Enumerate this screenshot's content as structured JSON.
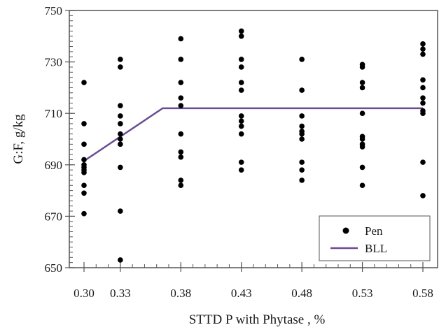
{
  "chart_data": {
    "type": "scatter",
    "title": "",
    "xlabel": "STTD P with Phytase , %",
    "ylabel": "G:F, g/kg",
    "xlim": [
      0.3,
      0.58
    ],
    "ylim": [
      650,
      750
    ],
    "xticks": [
      "0.30",
      "0.33",
      "0.38",
      "0.43",
      "0.48",
      "0.53",
      "0.58"
    ],
    "yticks": [
      "650",
      "670",
      "690",
      "710",
      "730",
      "750"
    ],
    "grid": false,
    "legend_position": "bottom-right",
    "series": [
      {
        "name": "Pen",
        "kind": "points",
        "color": "#000000",
        "points": [
          [
            0.3,
            722
          ],
          [
            0.3,
            706
          ],
          [
            0.3,
            698
          ],
          [
            0.3,
            692
          ],
          [
            0.3,
            690
          ],
          [
            0.3,
            689
          ],
          [
            0.3,
            688
          ],
          [
            0.3,
            687
          ],
          [
            0.3,
            682
          ],
          [
            0.3,
            679
          ],
          [
            0.3,
            671
          ],
          [
            0.33,
            731
          ],
          [
            0.33,
            728
          ],
          [
            0.33,
            713
          ],
          [
            0.33,
            709
          ],
          [
            0.33,
            706
          ],
          [
            0.33,
            702
          ],
          [
            0.33,
            700
          ],
          [
            0.33,
            698
          ],
          [
            0.33,
            689
          ],
          [
            0.33,
            672
          ],
          [
            0.33,
            653
          ],
          [
            0.38,
            739
          ],
          [
            0.38,
            731
          ],
          [
            0.38,
            722
          ],
          [
            0.38,
            716
          ],
          [
            0.38,
            713
          ],
          [
            0.38,
            702
          ],
          [
            0.38,
            695
          ],
          [
            0.38,
            693
          ],
          [
            0.38,
            684
          ],
          [
            0.38,
            682
          ],
          [
            0.43,
            742
          ],
          [
            0.43,
            740
          ],
          [
            0.43,
            731
          ],
          [
            0.43,
            728
          ],
          [
            0.43,
            722
          ],
          [
            0.43,
            719
          ],
          [
            0.43,
            709
          ],
          [
            0.43,
            707
          ],
          [
            0.43,
            705
          ],
          [
            0.43,
            702
          ],
          [
            0.43,
            691
          ],
          [
            0.43,
            688
          ],
          [
            0.48,
            731
          ],
          [
            0.48,
            719
          ],
          [
            0.48,
            709
          ],
          [
            0.48,
            705
          ],
          [
            0.48,
            703
          ],
          [
            0.48,
            702
          ],
          [
            0.48,
            700
          ],
          [
            0.48,
            691
          ],
          [
            0.48,
            688
          ],
          [
            0.48,
            684
          ],
          [
            0.53,
            729
          ],
          [
            0.53,
            728
          ],
          [
            0.53,
            722
          ],
          [
            0.53,
            720
          ],
          [
            0.53,
            710
          ],
          [
            0.53,
            701
          ],
          [
            0.53,
            700
          ],
          [
            0.53,
            698
          ],
          [
            0.53,
            697
          ],
          [
            0.53,
            689
          ],
          [
            0.53,
            682
          ],
          [
            0.58,
            737
          ],
          [
            0.58,
            735
          ],
          [
            0.58,
            733
          ],
          [
            0.58,
            723
          ],
          [
            0.58,
            720
          ],
          [
            0.58,
            716
          ],
          [
            0.58,
            714
          ],
          [
            0.58,
            711
          ],
          [
            0.58,
            710
          ],
          [
            0.58,
            691
          ],
          [
            0.58,
            678
          ]
        ]
      },
      {
        "name": "BLL",
        "kind": "line",
        "color": "#6a4c93",
        "points": [
          [
            0.3,
            691.5
          ],
          [
            0.365,
            712
          ],
          [
            0.58,
            712
          ]
        ]
      }
    ]
  }
}
